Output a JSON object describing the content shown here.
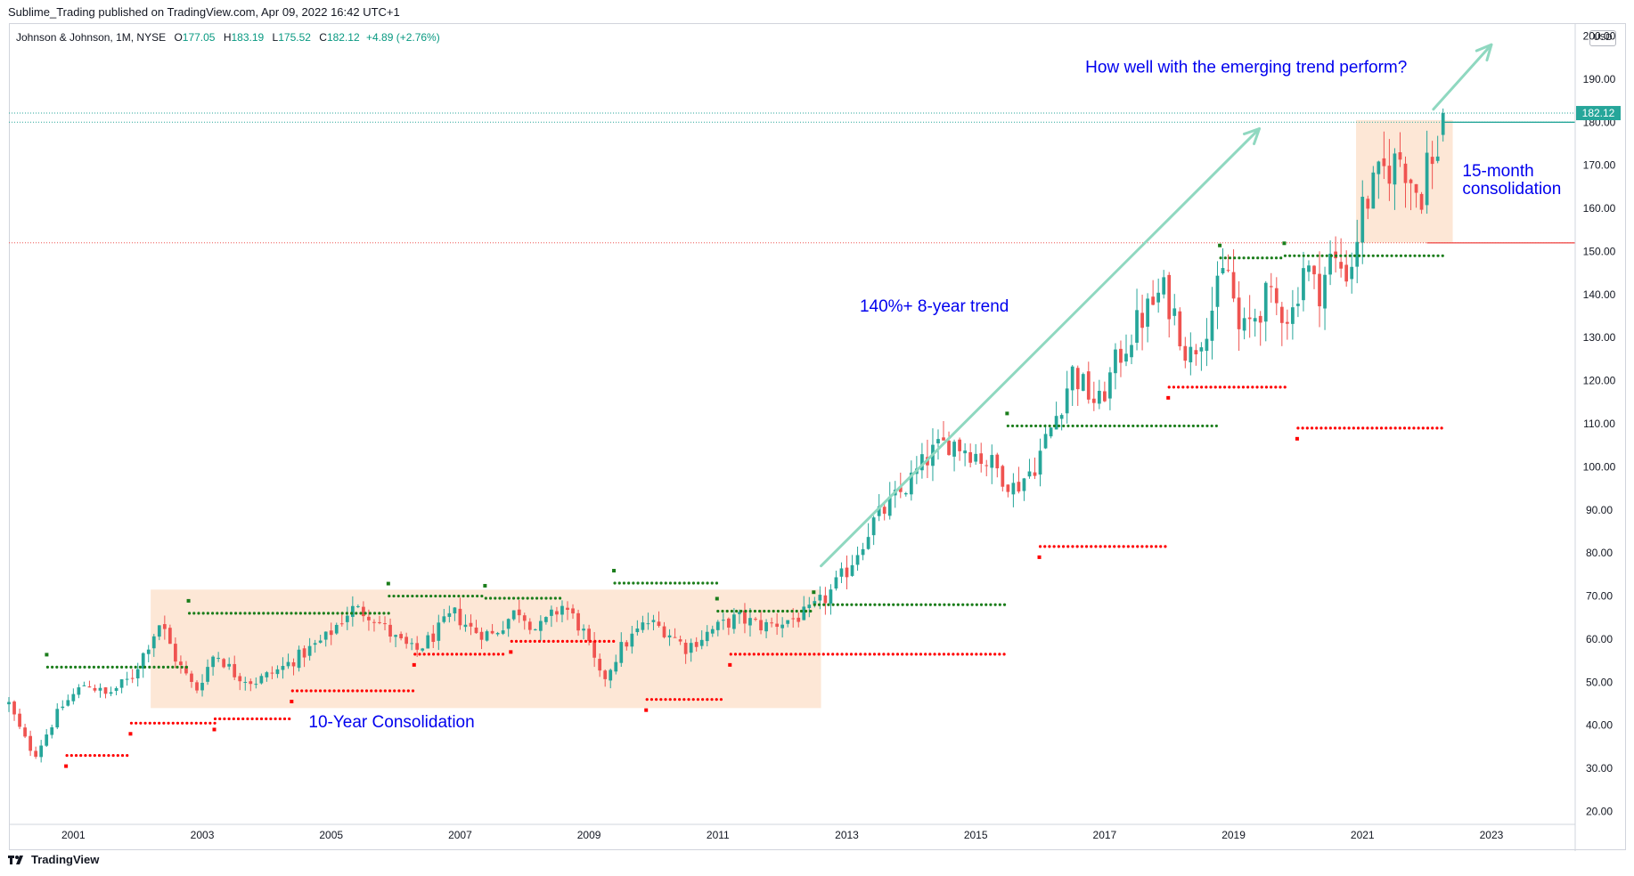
{
  "publisher": "Sublime_Trading published on TradingView.com, Apr 09, 2022 16:42 UTC+1",
  "symbol": {
    "name": "Johnson & Johnson, 1M, NYSE",
    "open_label": "O",
    "open": "177.05",
    "high_label": "H",
    "high": "183.19",
    "low_label": "L",
    "low": "175.52",
    "close_label": "C",
    "close": "182.12",
    "change": "+4.89 (+2.76%)"
  },
  "currency": "USD",
  "footer": "TradingView",
  "colors": {
    "up": "#26a69a",
    "down": "#ef5350",
    "support_dot": "#1b7d1b",
    "resistance_dot": "#ff0000",
    "zone": "#fde3cf",
    "arrow": "#8fd8c0",
    "annotation": "#0000ee"
  },
  "chart_data": {
    "type": "candlestick",
    "interval": "1M",
    "xlim": [
      2000.0,
      2024.3
    ],
    "ylim": [
      17.0,
      203.0
    ],
    "x_ticks": [
      "2001",
      "2003",
      "2005",
      "2007",
      "2009",
      "2011",
      "2013",
      "2015",
      "2017",
      "2019",
      "2021",
      "2023"
    ],
    "y_ticks": [
      "20.00",
      "30.00",
      "40.00",
      "50.00",
      "60.00",
      "70.00",
      "80.00",
      "90.00",
      "100.00",
      "110.00",
      "120.00",
      "130.00",
      "140.00",
      "150.00",
      "160.00",
      "170.00",
      "180.00",
      "190.00",
      "200.00"
    ],
    "last_price": "182.12",
    "anchors": [
      [
        2000.0,
        45
      ],
      [
        2000.2,
        38
      ],
      [
        2000.4,
        33
      ],
      [
        2000.8,
        44
      ],
      [
        2001.2,
        50
      ],
      [
        2001.5,
        47
      ],
      [
        2001.9,
        51
      ],
      [
        2002.2,
        60
      ],
      [
        2002.35,
        64
      ],
      [
        2002.6,
        55
      ],
      [
        2002.9,
        48
      ],
      [
        2003.2,
        57
      ],
      [
        2003.5,
        52
      ],
      [
        2003.8,
        50
      ],
      [
        2004.2,
        53
      ],
      [
        2004.5,
        56
      ],
      [
        2004.9,
        60
      ],
      [
        2005.3,
        67
      ],
      [
        2005.6,
        66
      ],
      [
        2006.0,
        60
      ],
      [
        2006.3,
        57
      ],
      [
        2006.6,
        61
      ],
      [
        2006.9,
        66
      ],
      [
        2007.2,
        62
      ],
      [
        2007.5,
        61
      ],
      [
        2007.9,
        67
      ],
      [
        2008.2,
        62
      ],
      [
        2008.6,
        68
      ],
      [
        2008.9,
        62
      ],
      [
        2009.2,
        50
      ],
      [
        2009.5,
        58
      ],
      [
        2009.9,
        64
      ],
      [
        2010.2,
        62
      ],
      [
        2010.5,
        58
      ],
      [
        2010.9,
        62
      ],
      [
        2011.3,
        65
      ],
      [
        2011.7,
        63
      ],
      [
        2012.0,
        64
      ],
      [
        2012.4,
        66
      ],
      [
        2012.7,
        70
      ],
      [
        2013.0,
        76
      ],
      [
        2013.4,
        87
      ],
      [
        2013.9,
        95
      ],
      [
        2014.3,
        103
      ],
      [
        2014.6,
        106
      ],
      [
        2014.9,
        104
      ],
      [
        2015.3,
        100
      ],
      [
        2015.6,
        95
      ],
      [
        2015.9,
        100
      ],
      [
        2016.2,
        110
      ],
      [
        2016.5,
        122
      ],
      [
        2016.9,
        114
      ],
      [
        2017.2,
        125
      ],
      [
        2017.5,
        133
      ],
      [
        2017.9,
        141
      ],
      [
        2018.1,
        135
      ],
      [
        2018.3,
        125
      ],
      [
        2018.6,
        134
      ],
      [
        2018.9,
        147
      ],
      [
        2019.1,
        130
      ],
      [
        2019.5,
        139
      ],
      [
        2019.9,
        135
      ],
      [
        2020.1,
        148
      ],
      [
        2020.3,
        140
      ],
      [
        2020.5,
        148
      ],
      [
        2020.8,
        145
      ],
      [
        2021.0,
        160
      ],
      [
        2021.3,
        168
      ],
      [
        2021.6,
        172
      ],
      [
        2021.9,
        162
      ],
      [
        2022.0,
        172
      ],
      [
        2022.1,
        168
      ],
      [
        2022.25,
        182
      ]
    ],
    "support_levels": [
      {
        "from": 2000.6,
        "to": 2002.8,
        "price": 53.5
      },
      {
        "from": 2002.8,
        "to": 2005.9,
        "price": 66
      },
      {
        "from": 2005.9,
        "to": 2007.4,
        "price": 70
      },
      {
        "from": 2007.4,
        "to": 2008.6,
        "price": 69.5
      },
      {
        "from": 2009.4,
        "to": 2011.0,
        "price": 73
      },
      {
        "from": 2011.0,
        "to": 2012.5,
        "price": 66.5
      },
      {
        "from": 2012.5,
        "to": 2015.5,
        "price": 68
      },
      {
        "from": 2015.5,
        "to": 2018.8,
        "price": 109.5
      },
      {
        "from": 2018.8,
        "to": 2019.8,
        "price": 148.5
      },
      {
        "from": 2019.8,
        "to": 2022.3,
        "price": 149
      }
    ],
    "resistance_levels": [
      {
        "from": 2000.9,
        "to": 2001.9,
        "price": 33
      },
      {
        "from": 2001.9,
        "to": 2003.2,
        "price": 40.5
      },
      {
        "from": 2003.2,
        "to": 2004.4,
        "price": 41.5
      },
      {
        "from": 2004.4,
        "to": 2006.3,
        "price": 48
      },
      {
        "from": 2006.3,
        "to": 2007.7,
        "price": 56.5
      },
      {
        "from": 2007.8,
        "to": 2009.4,
        "price": 59.5
      },
      {
        "from": 2009.9,
        "to": 2011.1,
        "price": 46
      },
      {
        "from": 2011.2,
        "to": 2015.5,
        "price": 56.5
      },
      {
        "from": 2016.0,
        "to": 2018.0,
        "price": 81.5
      },
      {
        "from": 2018.0,
        "to": 2019.8,
        "price": 118.5
      },
      {
        "from": 2020.0,
        "to": 2022.3,
        "price": 109
      }
    ],
    "zones": [
      {
        "x0": 2002.2,
        "x1": 2012.6,
        "y0": 44,
        "y1": 71.5
      },
      {
        "x0": 2020.9,
        "x1": 2022.4,
        "y0": 152,
        "y1": 180.5
      }
    ],
    "horizontal_lines": [
      {
        "price": 182.12,
        "style": "dotted",
        "color": "#26a69a"
      },
      {
        "price": 180.0,
        "style": "dotted",
        "color": "#26a69a"
      },
      {
        "price": 152.0,
        "style": "dotted",
        "color": "#ef5350"
      },
      {
        "price": 180.0,
        "from": 2022.25,
        "style": "solid",
        "color": "#26a69a"
      },
      {
        "price": 152.0,
        "from": 2022.0,
        "style": "solid",
        "color": "#ef5350"
      }
    ],
    "arrows": [
      {
        "x0": 2012.6,
        "y0": 77,
        "x1": 2019.4,
        "y1": 178.5
      },
      {
        "x0": 2022.1,
        "y0": 183,
        "x1": 2023.0,
        "y1": 198
      }
    ],
    "annotations": [
      {
        "text": "How well with the emerging trend perform?",
        "x": 2016.7,
        "y": 191.5
      },
      {
        "text": "140%+ 8-year trend",
        "x": 2013.2,
        "y": 136
      },
      {
        "text": "15-month",
        "x": 2022.55,
        "y": 167.5
      },
      {
        "text": "consolidation",
        "x": 2022.55,
        "y": 163.3
      },
      {
        "text": "10-Year Consolidation",
        "x": 2004.65,
        "y": 39.5
      }
    ]
  }
}
